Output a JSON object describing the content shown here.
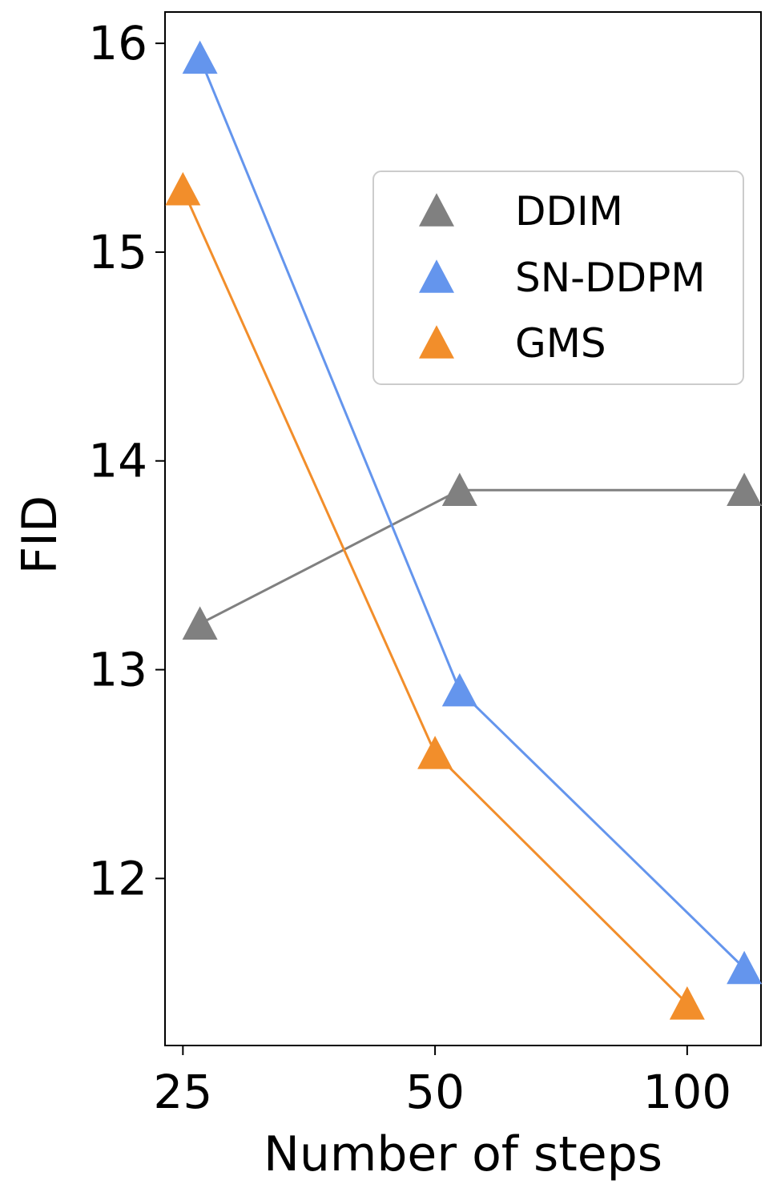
{
  "chart_data": {
    "type": "line",
    "title": "",
    "xlabel": "Number of steps",
    "ylabel": "FID",
    "x_scale": "log",
    "xlim": [
      23.8,
      122.5
    ],
    "ylim": [
      11.2,
      16.15
    ],
    "x_ticks": [
      25,
      50,
      100
    ],
    "x_tick_labels": [
      "25",
      "50",
      "100"
    ],
    "y_ticks": [
      12,
      13,
      14,
      15,
      16
    ],
    "y_tick_labels": [
      "12",
      "13",
      "14",
      "15",
      "16"
    ],
    "grid": false,
    "legend_position": "upper-right",
    "marker": "triangle",
    "series": [
      {
        "name": "DDIM",
        "color": "#808080",
        "x": [
          26.2,
          53.5,
          117
        ],
        "y": [
          13.22,
          13.86,
          13.86
        ]
      },
      {
        "name": "SN-DDPM",
        "color": "#6495ED",
        "x": [
          26.2,
          53.5,
          117
        ],
        "y": [
          15.93,
          12.9,
          11.57
        ]
      },
      {
        "name": "GMS",
        "color": "#F28E2B",
        "x": [
          25,
          50,
          100
        ],
        "y": [
          15.3,
          12.6,
          11.4
        ]
      }
    ]
  }
}
